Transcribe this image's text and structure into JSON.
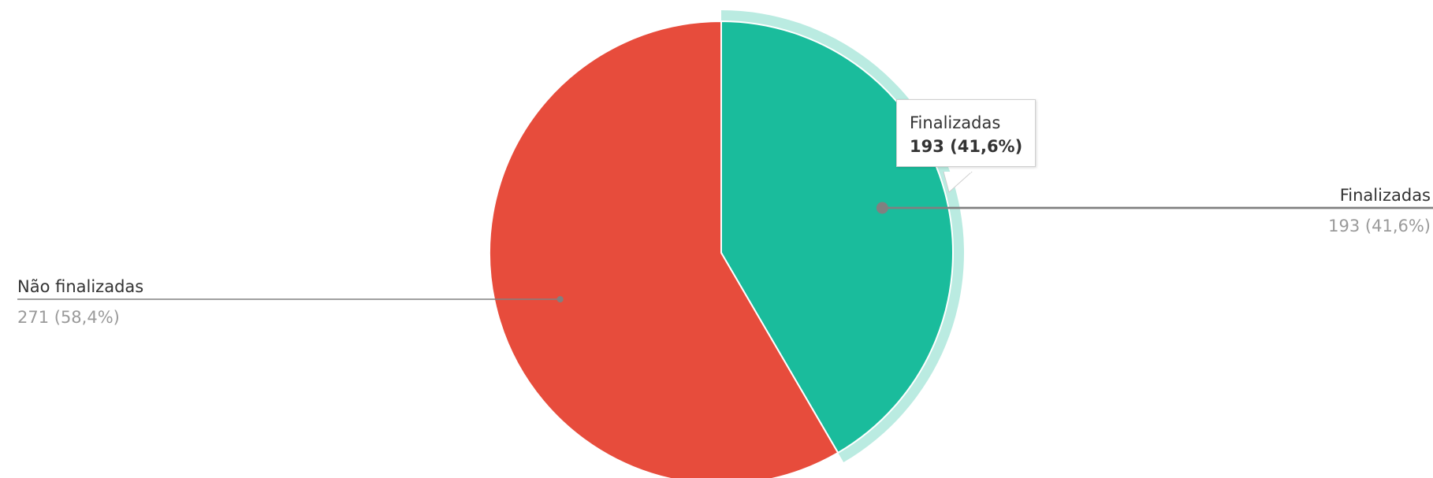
{
  "chart_data": {
    "type": "pie",
    "slices": [
      {
        "name": "Finalizadas",
        "value": 193,
        "percent": "41,6%",
        "display": "193 (41,6%)",
        "color": "#1abc9c",
        "highlighted": true
      },
      {
        "name": "Não finalizadas",
        "value": 271,
        "percent": "58,4%",
        "display": "271 (58,4%)",
        "color": "#e74c3c",
        "highlighted": false
      }
    ],
    "tooltip": {
      "title": "Finalizadas",
      "value": "193 (41,6%)"
    },
    "label_colors": {
      "name": "#333333",
      "value": "#9a9a9a",
      "leader": "#808080"
    }
  }
}
